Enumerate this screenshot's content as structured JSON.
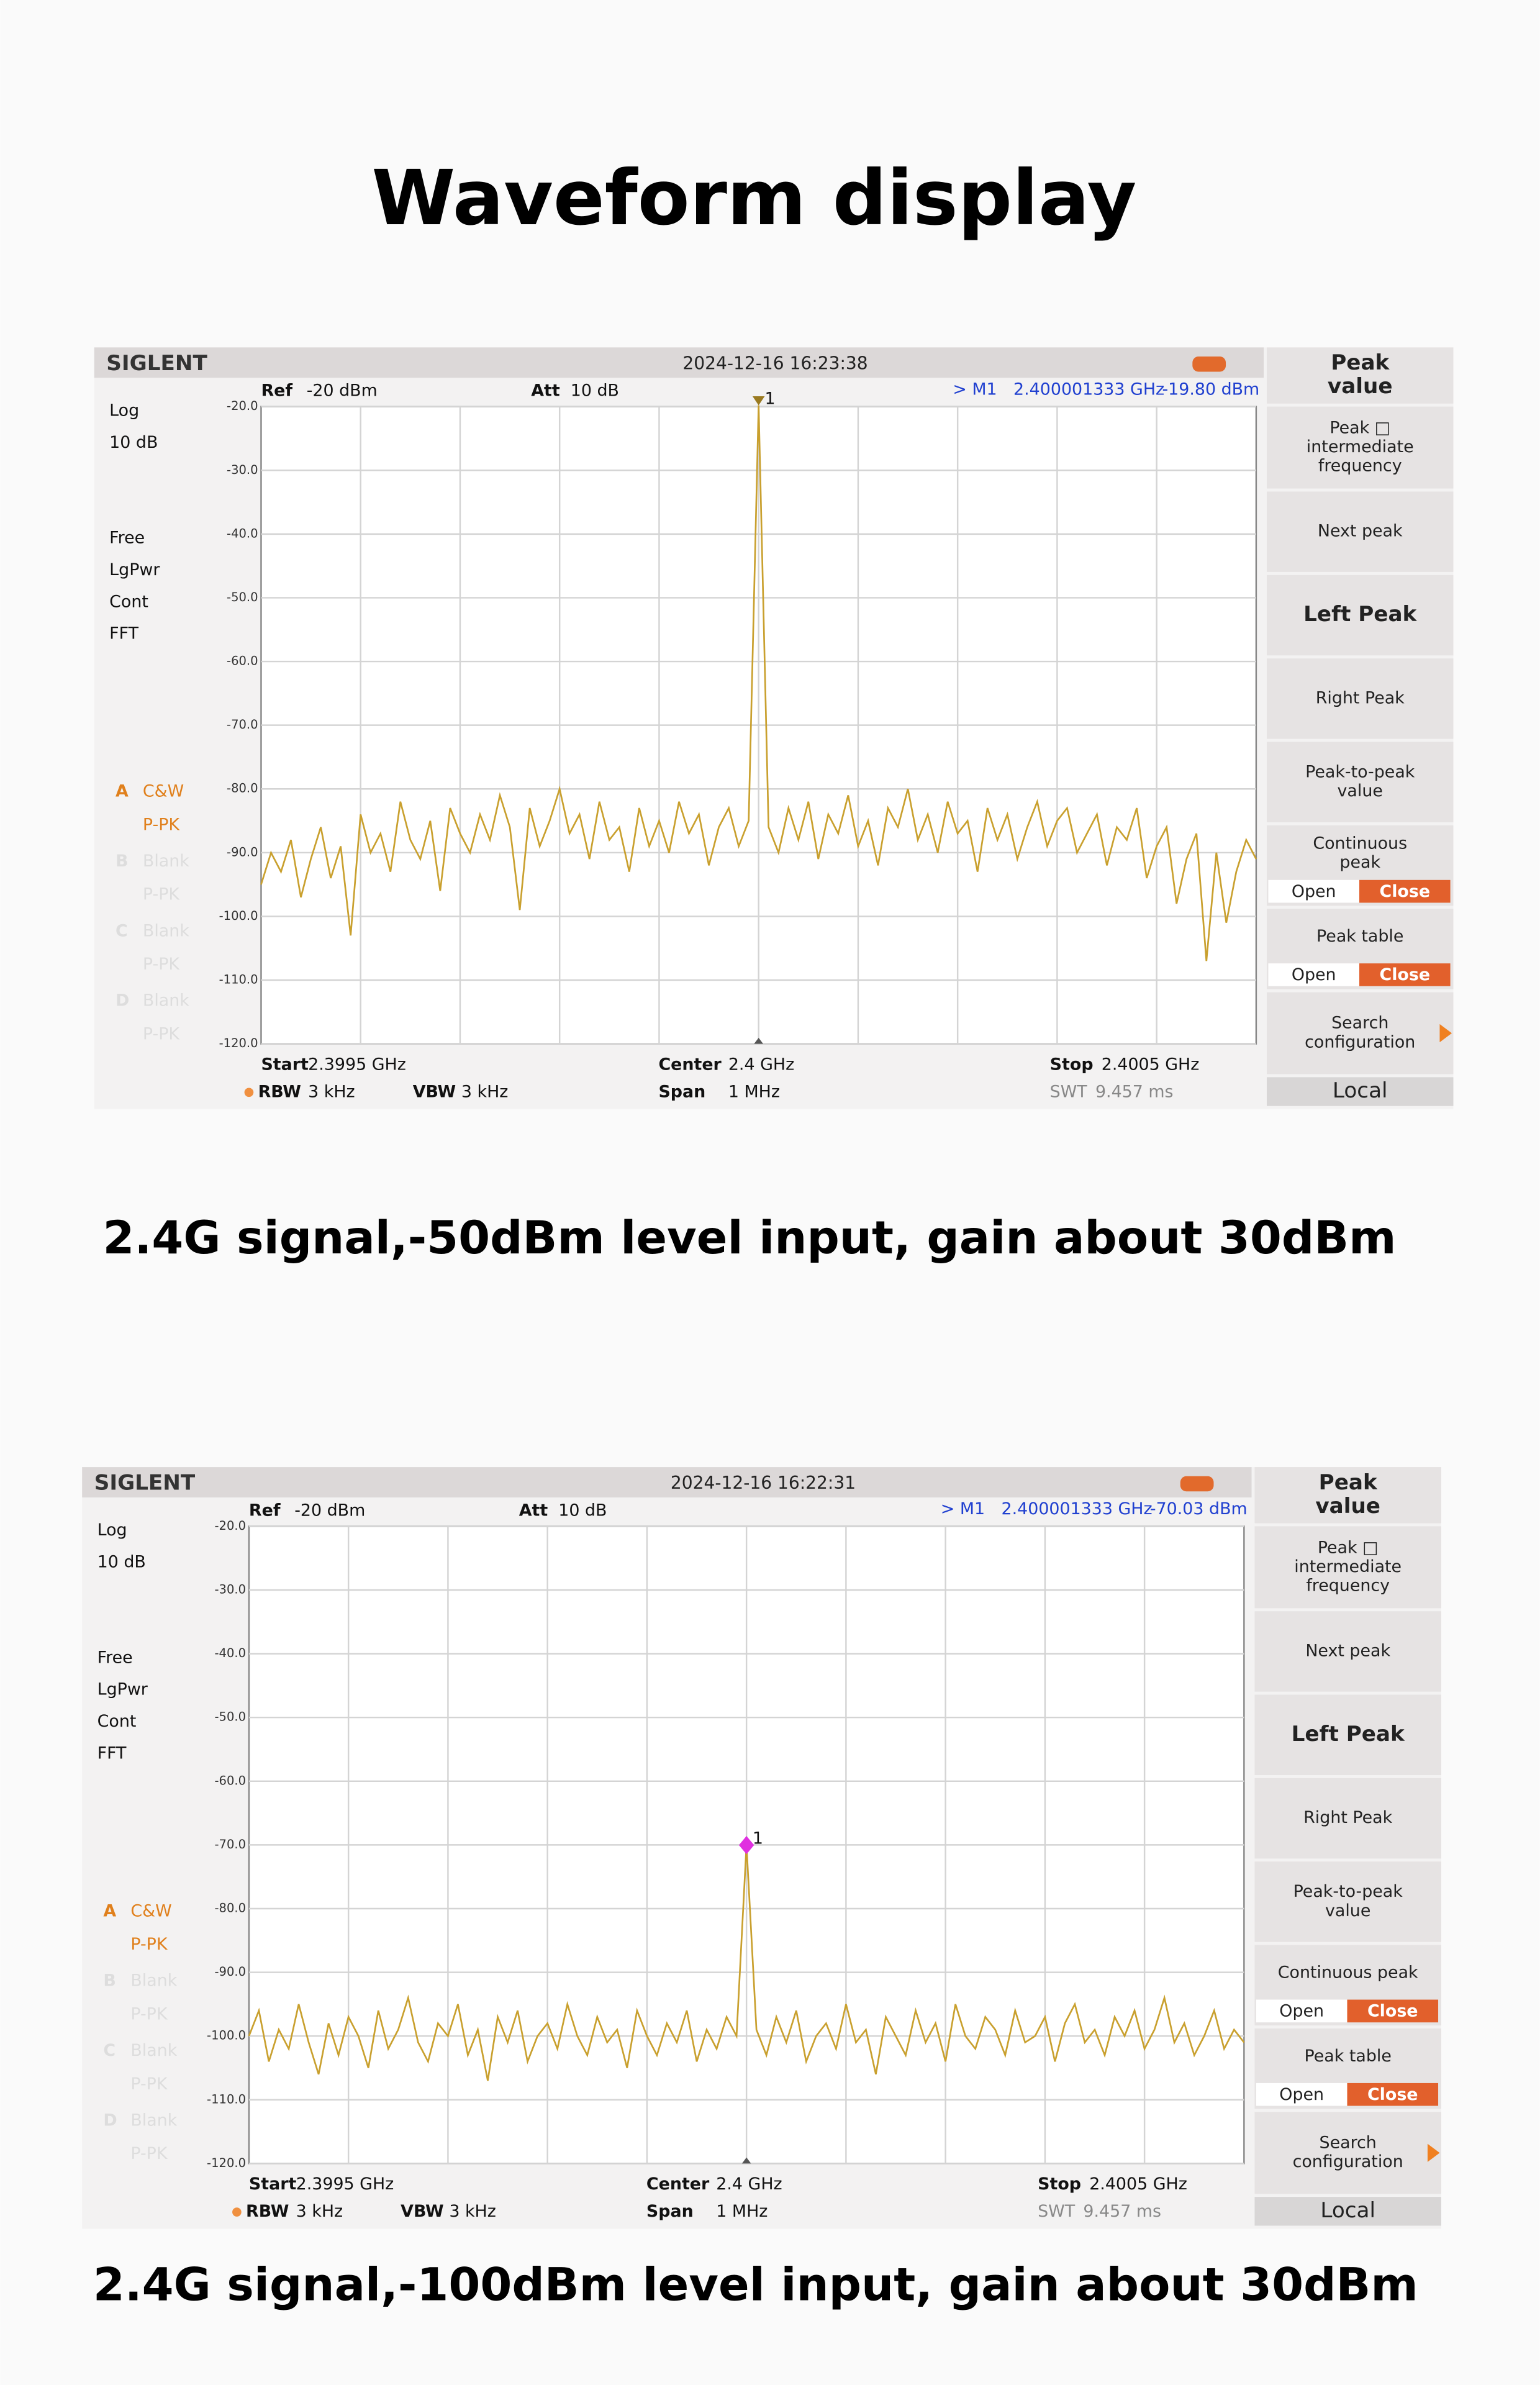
{
  "title": "Waveform display",
  "captions": [
    "2.4G signal,-50dBm level input, gain about 30dBm",
    "2.4G signal,-100dBm level input, gain about 30dBm"
  ],
  "chart_data": [
    {
      "type": "line",
      "color": "#c9a02e",
      "ylim": [
        -120,
        -20
      ],
      "yticks": [
        {
          "value": -20,
          "label": "-20.0"
        },
        {
          "value": -30,
          "label": "-30.0"
        },
        {
          "value": -40,
          "label": "-40.0"
        },
        {
          "value": -50,
          "label": "-50.0"
        },
        {
          "value": -60,
          "label": "-60.0"
        },
        {
          "value": -70,
          "label": "-70.0"
        },
        {
          "value": -80,
          "label": "-80.0"
        },
        {
          "value": -90,
          "label": "-90.0"
        },
        {
          "value": -100,
          "label": "-100.0"
        },
        {
          "value": -110,
          "label": "-110.0"
        },
        {
          "value": -120,
          "label": "-120.0"
        }
      ],
      "grid": true,
      "marker_label": "1",
      "marker_shape": "triangle",
      "marker_color": "#9a7a20",
      "values": [
        -95,
        -90,
        -93,
        -88,
        -97,
        -91,
        -86,
        -94,
        -89,
        -103,
        -84,
        -90,
        -87,
        -93,
        -82,
        -88,
        -91,
        -85,
        -96,
        -83,
        -87,
        -90,
        -84,
        -88,
        -81,
        -86,
        -99,
        -83,
        -89,
        -85,
        -80,
        -87,
        -84,
        -91,
        -82,
        -88,
        -86,
        -93,
        -83,
        -89,
        -85,
        -90,
        -82,
        -87,
        -84,
        -92,
        -86,
        -83,
        -89,
        -85,
        -19.8,
        -86,
        -90,
        -83,
        -88,
        -82,
        -91,
        -84,
        -87,
        -81,
        -89,
        -85,
        -92,
        -83,
        -86,
        -80,
        -88,
        -84,
        -90,
        -82,
        -87,
        -85,
        -93,
        -83,
        -88,
        -84,
        -91,
        -86,
        -82,
        -89,
        -85,
        -83,
        -90,
        -87,
        -84,
        -92,
        -86,
        -88,
        -83,
        -94,
        -89,
        -86,
        -98,
        -91,
        -87,
        -107,
        -90,
        -101,
        -93,
        -88,
        -91
      ],
      "instrument": {
        "brand": "SIGLENT",
        "timestamp": "2024-12-16 16:23:38",
        "ref": [
          "Ref",
          "-20 dBm"
        ],
        "att": [
          "Att",
          "10 dB"
        ],
        "marker": [
          "> M1",
          "2.400001333 GHz",
          "-19.80 dBm"
        ],
        "status": [
          "Log",
          "10 dB",
          "Free",
          "LgPwr",
          "Cont",
          "FFT"
        ],
        "traces": [
          [
            "A",
            "C&W",
            "P-PK"
          ],
          [
            "B",
            "Blank",
            "P-PK"
          ],
          [
            "C",
            "Blank",
            "P-PK"
          ],
          [
            "D",
            "Blank",
            "P-PK"
          ]
        ],
        "start": [
          "Start",
          "2.3995 GHz"
        ],
        "center": [
          "Center",
          "2.4 GHz"
        ],
        "stop": [
          "Stop",
          "2.4005 GHz"
        ],
        "rbw": [
          "RBW",
          "3 kHz"
        ],
        "vbw": [
          "VBW",
          "3 kHz"
        ],
        "span": [
          "Span",
          "1 MHz"
        ],
        "swt": [
          "SWT",
          "9.457 ms"
        ],
        "menu": [
          {
            "lines": [
              "Peak",
              "value"
            ]
          },
          {
            "lines": [
              "Peak □",
              "intermediate",
              "frequency"
            ]
          },
          {
            "lines": [
              "Next peak"
            ]
          },
          {
            "lines": [
              "Left Peak"
            ]
          },
          {
            "lines": [
              "Right Peak"
            ]
          },
          {
            "lines": [
              "Peak-to-peak",
              "value"
            ]
          },
          {
            "lines": [
              "Continuous",
              "peak"
            ],
            "options": [
              "Open",
              "Close"
            ]
          },
          {
            "lines": [
              "Peak table"
            ],
            "options": [
              "Open",
              "Close"
            ]
          },
          {
            "lines": [
              "Search",
              "configuration"
            ]
          },
          {
            "lines": [
              "Local"
            ]
          }
        ]
      }
    },
    {
      "type": "line",
      "color": "#c9a02e",
      "ylim": [
        -120,
        -20
      ],
      "yticks": [
        {
          "value": -20,
          "label": "-20.0"
        },
        {
          "value": -30,
          "label": "-30.0"
        },
        {
          "value": -40,
          "label": "-40.0"
        },
        {
          "value": -50,
          "label": "-50.0"
        },
        {
          "value": -60,
          "label": "-60.0"
        },
        {
          "value": -70,
          "label": "-70.0"
        },
        {
          "value": -80,
          "label": "-80.0"
        },
        {
          "value": -90,
          "label": "-90.0"
        },
        {
          "value": -100,
          "label": "-100.0"
        },
        {
          "value": -110,
          "label": "-110.0"
        },
        {
          "value": -120,
          "label": "-120.0"
        }
      ],
      "grid": true,
      "marker_label": "1",
      "marker_shape": "diamond",
      "marker_color": "#e030e0",
      "values": [
        -100,
        -96,
        -104,
        -99,
        -102,
        -95,
        -101,
        -106,
        -98,
        -103,
        -97,
        -100,
        -105,
        -96,
        -102,
        -99,
        -94,
        -101,
        -104,
        -98,
        -100,
        -95,
        -103,
        -99,
        -107,
        -97,
        -101,
        -96,
        -104,
        -100,
        -98,
        -102,
        -95,
        -100,
        -103,
        -97,
        -101,
        -99,
        -105,
        -96,
        -100,
        -103,
        -98,
        -101,
        -96,
        -104,
        -99,
        -102,
        -97,
        -100,
        -70.03,
        -99,
        -103,
        -97,
        -101,
        -96,
        -104,
        -100,
        -98,
        -102,
        -95,
        -101,
        -99,
        -106,
        -97,
        -100,
        -103,
        -96,
        -101,
        -98,
        -104,
        -95,
        -100,
        -102,
        -97,
        -99,
        -103,
        -96,
        -101,
        -100,
        -97,
        -104,
        -98,
        -95,
        -101,
        -99,
        -103,
        -97,
        -100,
        -96,
        -102,
        -99,
        -94,
        -101,
        -98,
        -103,
        -100,
        -96,
        -102,
        -99,
        -101
      ],
      "instrument": {
        "brand": "SIGLENT",
        "timestamp": "2024-12-16 16:22:31",
        "ref": [
          "Ref",
          "-20 dBm"
        ],
        "att": [
          "Att",
          "10 dB"
        ],
        "marker": [
          "> M1",
          "2.400001333 GHz",
          "-70.03 dBm"
        ],
        "status": [
          "Log",
          "10 dB",
          "Free",
          "LgPwr",
          "Cont",
          "FFT"
        ],
        "traces": [
          [
            "A",
            "C&W",
            "P-PK"
          ],
          [
            "B",
            "Blank",
            "P-PK"
          ],
          [
            "C",
            "Blank",
            "P-PK"
          ],
          [
            "D",
            "Blank",
            "P-PK"
          ]
        ],
        "start": [
          "Start",
          "2.3995 GHz"
        ],
        "center": [
          "Center",
          "2.4 GHz"
        ],
        "stop": [
          "Stop",
          "2.4005 GHz"
        ],
        "rbw": [
          "RBW",
          "3 kHz"
        ],
        "vbw": [
          "VBW",
          "3 kHz"
        ],
        "span": [
          "Span",
          "1 MHz"
        ],
        "swt": [
          "SWT",
          "9.457 ms"
        ],
        "menu": [
          {
            "lines": [
              "Peak",
              "value"
            ]
          },
          {
            "lines": [
              "Peak □",
              "intermediate",
              "frequency"
            ]
          },
          {
            "lines": [
              "Next peak"
            ]
          },
          {
            "lines": [
              "Left Peak"
            ]
          },
          {
            "lines": [
              "Right Peak"
            ]
          },
          {
            "lines": [
              "Peak-to-peak",
              "value"
            ]
          },
          {
            "lines": [
              "Continuous peak"
            ],
            "options": [
              "Open",
              "Close"
            ]
          },
          {
            "lines": [
              "Peak table"
            ],
            "options": [
              "Open",
              "Close"
            ]
          },
          {
            "lines": [
              "Search",
              "configuration"
            ]
          },
          {
            "lines": [
              "Local"
            ]
          }
        ]
      }
    }
  ]
}
